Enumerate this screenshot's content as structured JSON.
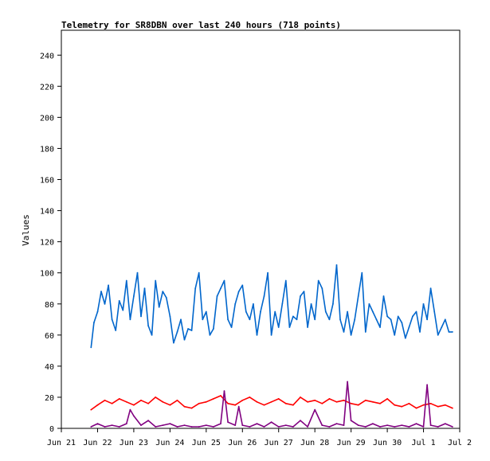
{
  "chart_data": {
    "type": "line",
    "title": "Telemetry for SR8DBN over last 240 hours (718 points)",
    "ylabel": "Values",
    "xlabel": "",
    "ylim": [
      0,
      256
    ],
    "yticks": [
      0,
      20,
      40,
      60,
      80,
      100,
      120,
      140,
      160,
      180,
      200,
      220,
      240
    ],
    "xlim": [
      "Jun 21",
      "Jul 2"
    ],
    "x_tick_labels": [
      "Jun 21",
      "Jun 22",
      "Jun 23",
      "Jun 24",
      "Jun 25",
      "Jun 26",
      "Jun 27",
      "Jun 28",
      "Jun 29",
      "Jun 30",
      "Jul 1",
      "Jul 2"
    ],
    "x_tick_days": [
      0,
      1,
      2,
      3,
      4,
      5,
      6,
      7,
      8,
      9,
      10,
      11
    ],
    "grid": false,
    "legend": "none",
    "series": [
      {
        "color": "#0066cc",
        "x": [
          0.82,
          0.9,
          1.0,
          1.1,
          1.2,
          1.3,
          1.4,
          1.5,
          1.6,
          1.7,
          1.8,
          1.9,
          2.0,
          2.1,
          2.2,
          2.3,
          2.4,
          2.5,
          2.6,
          2.7,
          2.8,
          2.9,
          3.0,
          3.1,
          3.2,
          3.3,
          3.4,
          3.5,
          3.6,
          3.7,
          3.8,
          3.9,
          4.0,
          4.1,
          4.2,
          4.3,
          4.4,
          4.5,
          4.6,
          4.7,
          4.8,
          4.9,
          5.0,
          5.1,
          5.2,
          5.3,
          5.4,
          5.5,
          5.6,
          5.7,
          5.8,
          5.9,
          6.0,
          6.1,
          6.2,
          6.3,
          6.4,
          6.5,
          6.6,
          6.7,
          6.8,
          6.9,
          7.0,
          7.1,
          7.2,
          7.3,
          7.4,
          7.5,
          7.6,
          7.7,
          7.8,
          7.9,
          8.0,
          8.1,
          8.2,
          8.3,
          8.4,
          8.5,
          8.6,
          8.7,
          8.8,
          8.9,
          9.0,
          9.1,
          9.2,
          9.3,
          9.4,
          9.5,
          9.6,
          9.7,
          9.8,
          9.9,
          10.0,
          10.1,
          10.2,
          10.3,
          10.4,
          10.5,
          10.6,
          10.7,
          10.8
        ],
        "values": [
          52,
          68,
          75,
          88,
          80,
          92,
          70,
          63,
          82,
          76,
          95,
          70,
          85,
          100,
          72,
          90,
          66,
          60,
          95,
          78,
          88,
          84,
          72,
          55,
          62,
          70,
          57,
          64,
          63,
          90,
          100,
          70,
          75,
          60,
          64,
          85,
          90,
          95,
          70,
          65,
          80,
          88,
          92,
          75,
          70,
          80,
          60,
          75,
          85,
          100,
          60,
          75,
          65,
          80,
          95,
          65,
          72,
          70,
          85,
          88,
          65,
          80,
          70,
          95,
          90,
          75,
          70,
          80,
          105,
          70,
          62,
          75,
          60,
          70,
          85,
          100,
          62,
          80,
          75,
          70,
          65,
          85,
          72,
          70,
          60,
          72,
          68,
          58,
          65,
          72,
          75,
          62,
          80,
          70,
          90,
          75,
          60,
          65,
          70,
          62,
          62
        ]
      },
      {
        "color": "#ff0000",
        "x": [
          0.82,
          1.0,
          1.2,
          1.4,
          1.6,
          1.8,
          2.0,
          2.2,
          2.4,
          2.6,
          2.8,
          3.0,
          3.2,
          3.4,
          3.6,
          3.8,
          4.0,
          4.2,
          4.4,
          4.6,
          4.8,
          5.0,
          5.2,
          5.4,
          5.6,
          5.8,
          6.0,
          6.2,
          6.4,
          6.6,
          6.8,
          7.0,
          7.2,
          7.4,
          7.6,
          7.8,
          8.0,
          8.2,
          8.4,
          8.6,
          8.8,
          9.0,
          9.2,
          9.4,
          9.6,
          9.8,
          10.0,
          10.2,
          10.4,
          10.6,
          10.8
        ],
        "values": [
          12,
          15,
          18,
          16,
          19,
          17,
          15,
          18,
          16,
          20,
          17,
          15,
          18,
          14,
          13,
          16,
          17,
          19,
          21,
          16,
          15,
          18,
          20,
          17,
          15,
          17,
          19,
          16,
          15,
          20,
          17,
          18,
          16,
          19,
          17,
          18,
          16,
          15,
          18,
          17,
          16,
          19,
          15,
          14,
          16,
          13,
          15,
          16,
          14,
          15,
          13
        ]
      },
      {
        "color": "#800080",
        "x": [
          0.82,
          1.0,
          1.2,
          1.4,
          1.6,
          1.8,
          1.9,
          2.0,
          2.2,
          2.4,
          2.6,
          2.8,
          3.0,
          3.2,
          3.4,
          3.6,
          3.8,
          4.0,
          4.2,
          4.4,
          4.5,
          4.6,
          4.8,
          4.9,
          5.0,
          5.2,
          5.4,
          5.6,
          5.8,
          6.0,
          6.2,
          6.4,
          6.6,
          6.8,
          7.0,
          7.2,
          7.4,
          7.6,
          7.8,
          7.9,
          8.0,
          8.2,
          8.4,
          8.6,
          8.8,
          9.0,
          9.2,
          9.4,
          9.6,
          9.8,
          10.0,
          10.1,
          10.2,
          10.4,
          10.6,
          10.8
        ],
        "values": [
          1,
          3,
          1,
          2,
          1,
          3,
          12,
          8,
          2,
          5,
          1,
          2,
          3,
          1,
          2,
          1,
          1,
          2,
          1,
          3,
          24,
          4,
          2,
          14,
          2,
          1,
          3,
          1,
          4,
          1,
          2,
          1,
          5,
          1,
          12,
          2,
          1,
          3,
          2,
          30,
          5,
          2,
          1,
          3,
          1,
          2,
          1,
          2,
          1,
          3,
          1,
          28,
          2,
          1,
          3,
          1
        ]
      }
    ]
  }
}
